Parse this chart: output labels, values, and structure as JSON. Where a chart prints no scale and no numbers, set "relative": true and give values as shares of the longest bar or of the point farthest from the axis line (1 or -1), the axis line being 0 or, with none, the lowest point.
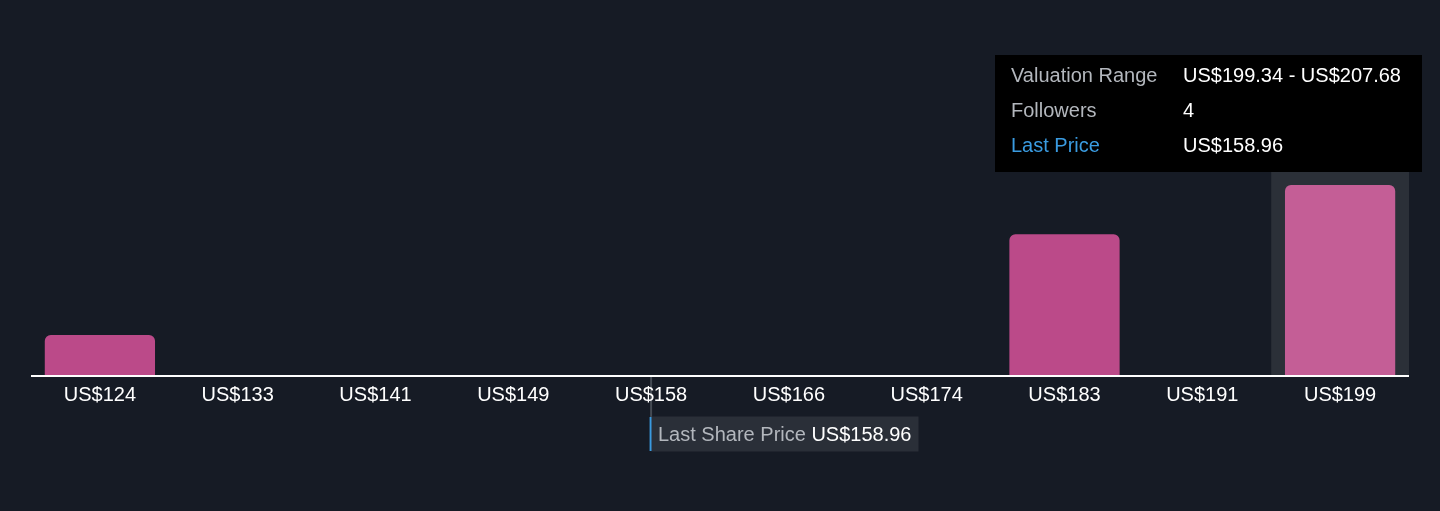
{
  "chart_data": {
    "type": "bar",
    "relative": true,
    "categories": [
      "US$124",
      "US$133",
      "US$141",
      "US$149",
      "US$158",
      "US$166",
      "US$174",
      "US$183",
      "US$191",
      "US$199"
    ],
    "values": [
      0.21,
      0,
      0,
      0,
      0,
      0,
      0,
      0.74,
      0,
      1
    ],
    "colors": [
      "#bb4a89",
      "#bb4a89",
      "#bb4a89",
      "#bb4a89",
      "#bb4a89",
      "#bb4a89",
      "#bb4a89",
      "#bb4a89",
      "#bb4a89",
      "#c45e96"
    ],
    "ref_lines": [
      {
        "axis": "x",
        "value": "US$158",
        "label": "Last Share Price US$158.96",
        "color": "#454b54"
      }
    ],
    "bands": [
      {
        "axis": "x",
        "from": "US$199",
        "to": "US$199",
        "color": "#2b3038"
      }
    ],
    "annotations": [
      "Valuation Range",
      "US$199.34 - US$207.68",
      "Followers",
      "4",
      "Last Price",
      "US$158.96"
    ]
  }
}
